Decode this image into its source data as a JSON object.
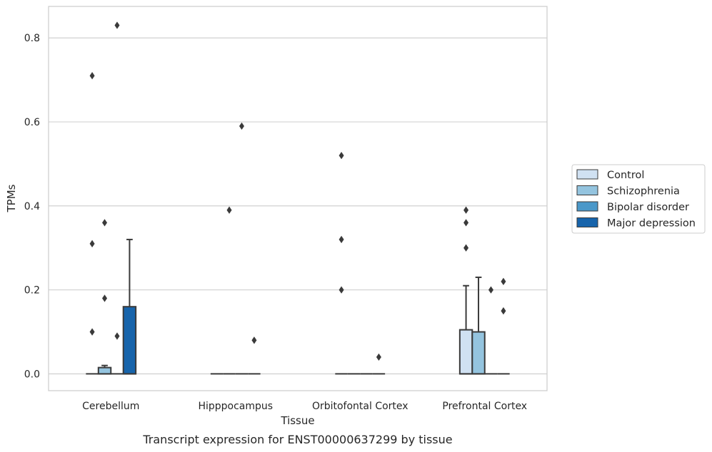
{
  "chart_data": {
    "type": "box",
    "title": "",
    "caption": "Transcript expression for ENST00000637299 by tissue",
    "xlabel": "Tissue",
    "ylabel": "TPMs",
    "ylim": [
      -0.04,
      0.875
    ],
    "yticks": [
      0.0,
      0.2,
      0.4,
      0.6,
      0.8
    ],
    "ytick_labels": [
      "0.0",
      "0.2",
      "0.4",
      "0.6",
      "0.8"
    ],
    "grid": "horizontal",
    "legend_position": "right",
    "categories": [
      "Cerebellum",
      "Hipppocampus",
      "Orbitofontal Cortex",
      "Prefrontal Cortex"
    ],
    "series": [
      {
        "name": "Control",
        "color": "#d0e1f2",
        "boxes": [
          {
            "q1": 0,
            "median": 0,
            "q3": 0,
            "whisker_low": 0,
            "whisker_high": 0,
            "outliers": [
              0.1,
              0.31,
              0.71
            ]
          },
          {
            "q1": 0,
            "median": 0,
            "q3": 0,
            "whisker_low": 0,
            "whisker_high": 0,
            "outliers": []
          },
          {
            "q1": 0,
            "median": 0,
            "q3": 0,
            "whisker_low": 0,
            "whisker_high": 0,
            "outliers": [
              0.2,
              0.32,
              0.52
            ]
          },
          {
            "q1": 0,
            "median": 0,
            "q3": 0.105,
            "whisker_low": 0,
            "whisker_high": 0.21,
            "outliers": [
              0.3,
              0.36,
              0.39
            ]
          }
        ]
      },
      {
        "name": "Schizophrenia",
        "color": "#94c4df",
        "boxes": [
          {
            "q1": 0,
            "median": 0,
            "q3": 0.015,
            "whisker_low": 0,
            "whisker_high": 0.02,
            "outliers": [
              0.18,
              0.36
            ]
          },
          {
            "q1": 0,
            "median": 0,
            "q3": 0,
            "whisker_low": 0,
            "whisker_high": 0,
            "outliers": [
              0.39
            ]
          },
          {
            "q1": 0,
            "median": 0,
            "q3": 0,
            "whisker_low": 0,
            "whisker_high": 0,
            "outliers": []
          },
          {
            "q1": 0,
            "median": 0,
            "q3": 0.1,
            "whisker_low": 0,
            "whisker_high": 0.23,
            "outliers": []
          }
        ]
      },
      {
        "name": "Bipolar disorder",
        "color": "#4a98c9",
        "boxes": [
          {
            "q1": 0,
            "median": 0,
            "q3": 0,
            "whisker_low": 0,
            "whisker_high": 0,
            "outliers": [
              0.09,
              0.83
            ]
          },
          {
            "q1": 0,
            "median": 0,
            "q3": 0,
            "whisker_low": 0,
            "whisker_high": 0,
            "outliers": [
              0.59
            ]
          },
          {
            "q1": 0,
            "median": 0,
            "q3": 0,
            "whisker_low": 0,
            "whisker_high": 0,
            "outliers": []
          },
          {
            "q1": 0,
            "median": 0,
            "q3": 0,
            "whisker_low": 0,
            "whisker_high": 0,
            "outliers": [
              0.2
            ]
          }
        ]
      },
      {
        "name": "Major depression",
        "color": "#1764ab",
        "boxes": [
          {
            "q1": 0,
            "median": 0,
            "q3": 0.16,
            "whisker_low": 0,
            "whisker_high": 0.32,
            "outliers": []
          },
          {
            "q1": 0,
            "median": 0,
            "q3": 0,
            "whisker_low": 0,
            "whisker_high": 0,
            "outliers": [
              0.08
            ]
          },
          {
            "q1": 0,
            "median": 0,
            "q3": 0,
            "whisker_low": 0,
            "whisker_high": 0,
            "outliers": [
              0.04
            ]
          },
          {
            "q1": 0,
            "median": 0,
            "q3": 0,
            "whisker_low": 0,
            "whisker_high": 0,
            "outliers": [
              0.15,
              0.22
            ]
          }
        ]
      }
    ]
  }
}
